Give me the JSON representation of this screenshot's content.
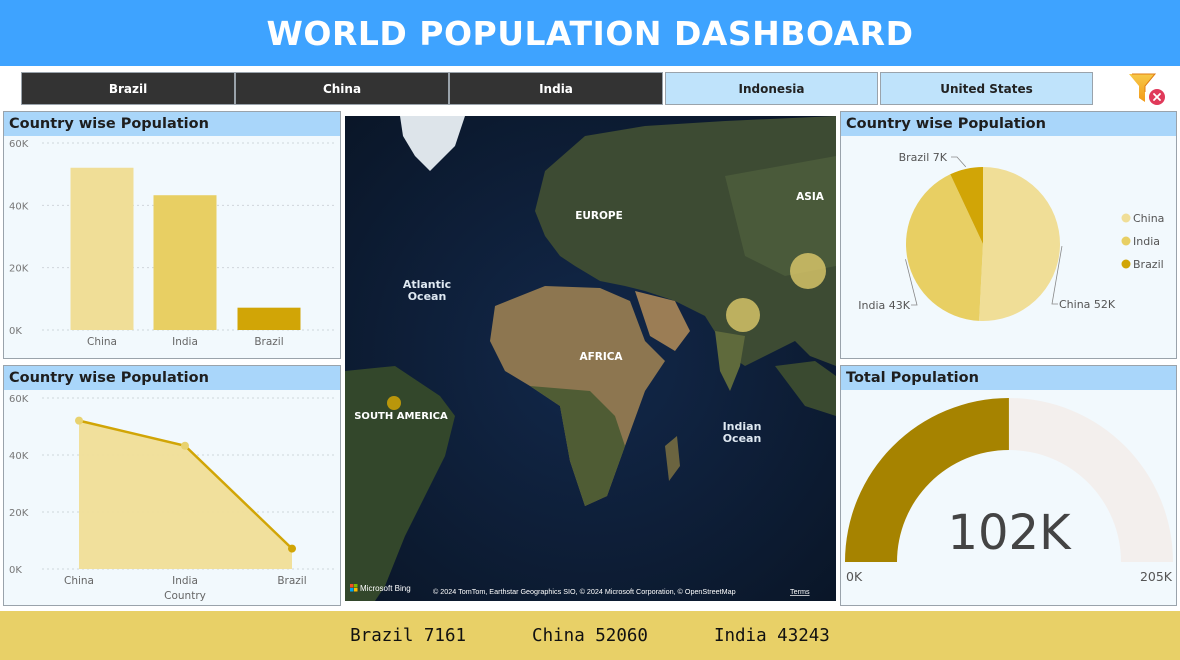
{
  "header": {
    "title": "WORLD POPULATION DASHBOARD"
  },
  "slicer": {
    "buttons": [
      {
        "label": "Brazil",
        "selected": true
      },
      {
        "label": "China",
        "selected": true
      },
      {
        "label": "India",
        "selected": true
      },
      {
        "label": "Indonesia",
        "selected": false
      },
      {
        "label": "United States",
        "selected": false
      }
    ]
  },
  "icons": {
    "clear_filter": "clear-filter-icon",
    "map_brand": "microsoft-bing-logo"
  },
  "colors": {
    "header": "#3ea3ff",
    "panel_title": "#a9d6fa",
    "china": "#f0de97",
    "india": "#e8cf63",
    "brazil": "#d1a506",
    "gauge_fill": "#a68300",
    "gauge_track": "#f3efed",
    "footer": "#e8d067"
  },
  "bar_panel": {
    "title": "Country wise Population"
  },
  "line_panel": {
    "title": "Country wise Population"
  },
  "pie_panel": {
    "title": "Country wise Population"
  },
  "gauge_panel": {
    "title": "Total Population"
  },
  "map": {
    "labels": [
      "EUROPE",
      "ASIA",
      "AFRICA",
      "SOUTH AMERICA"
    ],
    "oceans": [
      "Atlantic Ocean",
      "Indian Ocean"
    ],
    "attribution": "© 2024 TomTom, Earthstar Geographics SIO, © 2024 Microsoft Corporation, © OpenStreetMap",
    "terms": "Terms",
    "brand": "Microsoft Bing"
  },
  "chart_data": [
    {
      "type": "bar",
      "title": "Country wise Population",
      "categories": [
        "China",
        "India",
        "Brazil"
      ],
      "values": [
        52060,
        43243,
        7161
      ],
      "ylim": [
        0,
        60000
      ],
      "yticks": [
        "0K",
        "20K",
        "40K",
        "60K"
      ],
      "grid": true
    },
    {
      "type": "area",
      "title": "Country wise Population",
      "categories": [
        "China",
        "India",
        "Brazil"
      ],
      "values": [
        52060,
        43243,
        7161
      ],
      "xlabel": "Country",
      "ylim": [
        0,
        60000
      ],
      "yticks": [
        "0K",
        "20K",
        "40K",
        "60K"
      ],
      "grid": true
    },
    {
      "type": "pie",
      "title": "Country wise Population",
      "categories": [
        "China",
        "India",
        "Brazil"
      ],
      "values": [
        52060,
        43243,
        7161
      ],
      "data_labels": [
        "China 52K",
        "India 43K",
        "Brazil 7K"
      ],
      "legend": [
        "China",
        "India",
        "Brazil"
      ],
      "legend_position": "right"
    },
    {
      "type": "gauge",
      "title": "Total Population",
      "value": 102464,
      "value_label": "102K",
      "min": 0,
      "max": 205000,
      "min_label": "0K",
      "max_label": "205K"
    }
  ],
  "footer": {
    "items": [
      "Brazil 7161",
      "China 52060",
      "India 43243"
    ]
  }
}
